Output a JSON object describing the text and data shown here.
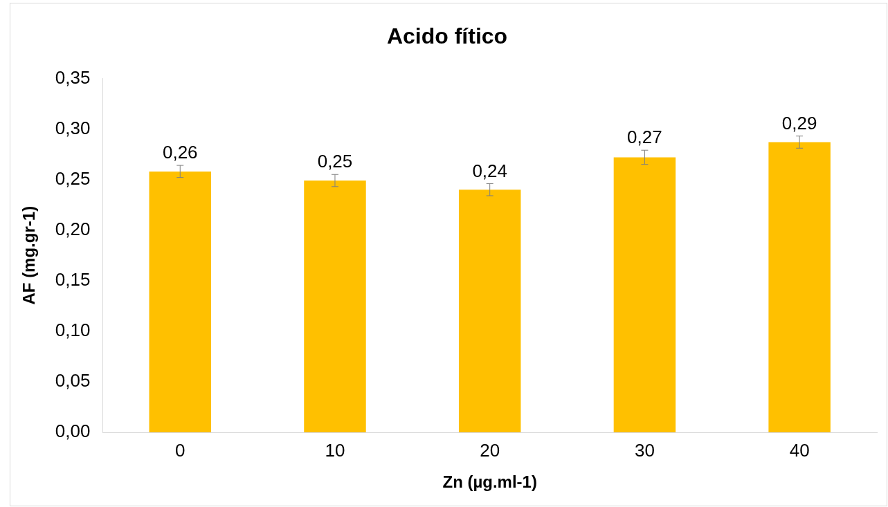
{
  "chart_data": {
    "type": "bar",
    "title": "Acido fítico",
    "xlabel": "Zn (µg.ml-1)",
    "ylabel": "AF (mg.gr-1)",
    "categories": [
      "0",
      "10",
      "20",
      "30",
      "40"
    ],
    "values": [
      0.258,
      0.249,
      0.24,
      0.272,
      0.287
    ],
    "errors": [
      0.006,
      0.006,
      0.006,
      0.007,
      0.006
    ],
    "value_labels": [
      "0,26",
      "0,25",
      "0,24",
      "0,27",
      "0,29"
    ],
    "color": "#ffc000",
    "ylim": [
      0,
      0.35
    ],
    "yticks": [
      {
        "value": 0,
        "label": "0,00"
      },
      {
        "value": 0.05,
        "label": "0,05"
      },
      {
        "value": 0.1,
        "label": "0,10"
      },
      {
        "value": 0.15,
        "label": "0,15"
      },
      {
        "value": 0.2,
        "label": "0,20"
      },
      {
        "value": 0.25,
        "label": "0,25"
      },
      {
        "value": 0.3,
        "label": "0,30"
      },
      {
        "value": 0.35,
        "label": "0,35"
      }
    ],
    "grid": false,
    "legend": false
  }
}
